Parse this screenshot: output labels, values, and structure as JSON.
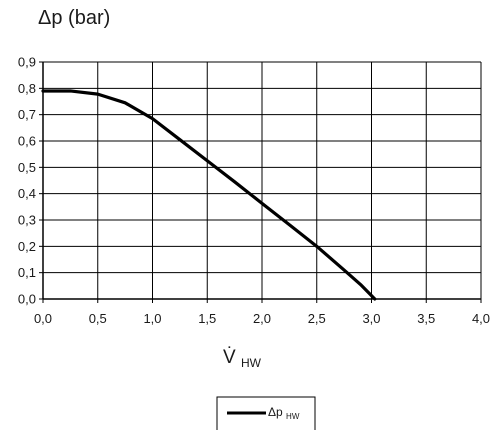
{
  "chart_data": {
    "type": "line",
    "ylabel": "Δp (bar)",
    "xlabel": {
      "main": "V̇",
      "sub": "HW"
    },
    "xlim": [
      0,
      4
    ],
    "ylim": [
      0,
      0.9
    ],
    "x_ticks": [
      "0,0",
      "0,5",
      "1,0",
      "1,5",
      "2,0",
      "2,5",
      "3,0",
      "3,5",
      "4,0"
    ],
    "y_ticks": [
      "0,0",
      "0,1",
      "0,2",
      "0,3",
      "0,4",
      "0,5",
      "0,6",
      "0,7",
      "0,8",
      "0,9"
    ],
    "grid": true,
    "legend_position": "bottom-center",
    "series": [
      {
        "name": {
          "main": "Δp",
          "sub": "HW"
        },
        "color": "#000000",
        "points": [
          [
            0.0,
            0.79
          ],
          [
            0.25,
            0.79
          ],
          [
            0.5,
            0.778
          ],
          [
            0.75,
            0.745
          ],
          [
            1.0,
            0.685
          ],
          [
            1.25,
            0.605
          ],
          [
            1.5,
            0.525
          ],
          [
            1.75,
            0.445
          ],
          [
            2.0,
            0.363
          ],
          [
            2.25,
            0.282
          ],
          [
            2.5,
            0.2
          ],
          [
            2.75,
            0.11
          ],
          [
            2.9,
            0.055
          ],
          [
            3.03,
            0.0
          ]
        ]
      }
    ]
  }
}
